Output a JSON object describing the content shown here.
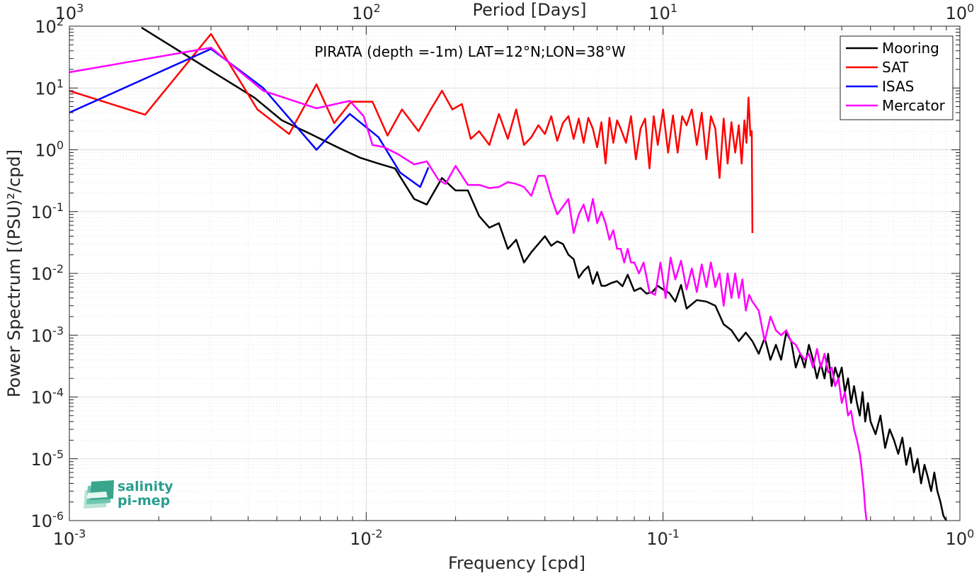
{
  "chart_data": {
    "type": "line",
    "title": "PIRATA (depth =-1m) LAT=12°N;LON=38°W",
    "xlabel": "Frequency [cpd]",
    "ylabel": "Power Spectrum [(PSU)²/cpd]",
    "top_xlabel": "Period [Days]",
    "x_scale": "log",
    "y_scale": "log",
    "xlim": [
      0.001,
      1
    ],
    "ylim": [
      1e-06,
      100
    ],
    "grid": true,
    "legend_position": "top-right",
    "x_ticks": [
      {
        "value": 0.001,
        "base": "10",
        "exp": "-3"
      },
      {
        "value": 0.01,
        "base": "10",
        "exp": "-2"
      },
      {
        "value": 0.1,
        "base": "10",
        "exp": "-1"
      },
      {
        "value": 1,
        "base": "10",
        "exp": "0"
      }
    ],
    "y_ticks": [
      {
        "value": 1e-06,
        "base": "10",
        "exp": "-6"
      },
      {
        "value": 1e-05,
        "base": "10",
        "exp": "-5"
      },
      {
        "value": 0.0001,
        "base": "10",
        "exp": "-4"
      },
      {
        "value": 0.001,
        "base": "10",
        "exp": "-3"
      },
      {
        "value": 0.01,
        "base": "10",
        "exp": "-2"
      },
      {
        "value": 0.1,
        "base": "10",
        "exp": "-1"
      },
      {
        "value": 1,
        "base": "10",
        "exp": "0"
      },
      {
        "value": 10,
        "base": "10",
        "exp": "1"
      },
      {
        "value": 100,
        "base": "10",
        "exp": "2"
      }
    ],
    "top_ticks": [
      {
        "period": 1000,
        "base": "10",
        "exp": "3"
      },
      {
        "period": 100,
        "base": "10",
        "exp": "2"
      },
      {
        "period": 10,
        "base": "10",
        "exp": "1"
      },
      {
        "period": 1,
        "base": "10",
        "exp": "0"
      }
    ],
    "series": [
      {
        "name": "Mooring",
        "color": "#000000",
        "x": [
          0.00175,
          0.003,
          0.0042,
          0.0052,
          0.0065,
          0.008,
          0.0095,
          0.011,
          0.0125,
          0.0145,
          0.016,
          0.018,
          0.02,
          0.022,
          0.024,
          0.026,
          0.028,
          0.03,
          0.032,
          0.034,
          0.036,
          0.038,
          0.04,
          0.042,
          0.044,
          0.046,
          0.048,
          0.05,
          0.052,
          0.054,
          0.056,
          0.058,
          0.06,
          0.062,
          0.064,
          0.067,
          0.07,
          0.073,
          0.076,
          0.08,
          0.084,
          0.088,
          0.092,
          0.096,
          0.1,
          0.105,
          0.11,
          0.115,
          0.12,
          0.13,
          0.14,
          0.15,
          0.16,
          0.17,
          0.18,
          0.19,
          0.2,
          0.21,
          0.22,
          0.23,
          0.24,
          0.25,
          0.26,
          0.27,
          0.28,
          0.29,
          0.3,
          0.31,
          0.32,
          0.33,
          0.34,
          0.35,
          0.36,
          0.37,
          0.38,
          0.39,
          0.4,
          0.41,
          0.42,
          0.43,
          0.44,
          0.45,
          0.46,
          0.47,
          0.48,
          0.49,
          0.5,
          0.52,
          0.54,
          0.56,
          0.58,
          0.6,
          0.62,
          0.64,
          0.66,
          0.68,
          0.7,
          0.72,
          0.74,
          0.76,
          0.78,
          0.8,
          0.82,
          0.84,
          0.86,
          0.88,
          0.9
        ],
        "y": [
          95,
          19,
          7,
          3,
          1.8,
          1.1,
          0.75,
          0.6,
          0.5,
          0.16,
          0.13,
          0.35,
          0.22,
          0.22,
          0.085,
          0.055,
          0.065,
          0.025,
          0.035,
          0.015,
          0.022,
          0.03,
          0.04,
          0.028,
          0.033,
          0.03,
          0.02,
          0.017,
          0.0085,
          0.011,
          0.013,
          0.0068,
          0.0105,
          0.0063,
          0.0063,
          0.007,
          0.0075,
          0.0062,
          0.0095,
          0.0052,
          0.0058,
          0.0047,
          0.005,
          0.0063,
          0.0055,
          0.0048,
          0.0035,
          0.0065,
          0.0027,
          0.0037,
          0.0035,
          0.003,
          0.0015,
          0.0012,
          0.0008,
          0.0011,
          0.0008,
          0.0005,
          0.0009,
          0.0004,
          0.0007,
          0.0004,
          0.0011,
          0.0008,
          0.0003,
          0.0005,
          0.0003,
          0.0007,
          0.0004,
          0.0002,
          0.00035,
          0.0002,
          0.0005,
          0.00015,
          0.0003,
          0.0002,
          0.0003,
          0.00012,
          0.0002,
          8e-05,
          0.00015,
          8e-05,
          5e-05,
          0.00012,
          4e-05,
          8e-05,
          4e-05,
          2.5e-05,
          5e-05,
          1.5e-05,
          3e-05,
          2e-05,
          1.2e-05,
          2.2e-05,
          8e-06,
          1.5e-05,
          6e-06,
          1e-05,
          4e-06,
          8e-06,
          5e-06,
          3e-06,
          6e-06,
          3e-06,
          2e-06,
          1.2e-06,
          1e-06
        ]
      },
      {
        "name": "SAT",
        "color": "#ff0000",
        "x": [
          0.001,
          0.0018,
          0.003,
          0.0043,
          0.0055,
          0.0068,
          0.0078,
          0.0089,
          0.0095,
          0.0105,
          0.0118,
          0.0132,
          0.015,
          0.0165,
          0.018,
          0.0195,
          0.021,
          0.0225,
          0.024,
          0.026,
          0.028,
          0.03,
          0.032,
          0.034,
          0.036,
          0.038,
          0.04,
          0.042,
          0.044,
          0.046,
          0.048,
          0.05,
          0.052,
          0.054,
          0.056,
          0.058,
          0.06,
          0.062,
          0.064,
          0.066,
          0.068,
          0.07,
          0.072,
          0.075,
          0.078,
          0.081,
          0.084,
          0.087,
          0.09,
          0.093,
          0.096,
          0.1,
          0.104,
          0.108,
          0.112,
          0.116,
          0.12,
          0.125,
          0.13,
          0.135,
          0.14,
          0.145,
          0.15,
          0.155,
          0.16,
          0.165,
          0.17,
          0.175,
          0.18,
          0.184,
          0.188,
          0.191,
          0.194,
          0.197,
          0.199,
          0.2
        ],
        "y": [
          9,
          3.7,
          75,
          4.5,
          1.8,
          11.5,
          2.7,
          6,
          6,
          6,
          1.7,
          4.5,
          2,
          4.5,
          9,
          4.5,
          5.5,
          1.5,
          2,
          1.2,
          3.8,
          1.5,
          4.5,
          1.2,
          1.6,
          2.5,
          1.8,
          3.5,
          1.4,
          2.7,
          3.5,
          1.5,
          3.2,
          1.3,
          3.3,
          2.2,
          1.1,
          2.8,
          0.6,
          3.3,
          1.3,
          3,
          2.2,
          1.3,
          3.5,
          0.7,
          2.2,
          3.2,
          0.5,
          3.5,
          1.2,
          4.5,
          0.9,
          3.6,
          0.9,
          3.5,
          2.5,
          4.5,
          1.2,
          4,
          0.7,
          3.5,
          2.2,
          0.35,
          3.2,
          0.6,
          2.8,
          0.9,
          2.5,
          0.6,
          3,
          1.3,
          7,
          1.7,
          2,
          0.045
        ]
      },
      {
        "name": "ISAS",
        "color": "#0000ff",
        "x": [
          0.001,
          0.003,
          0.0045,
          0.0068,
          0.0088,
          0.011,
          0.013,
          0.0152,
          0.0162
        ],
        "y": [
          4,
          43,
          10,
          1,
          3.8,
          1.6,
          0.43,
          0.25,
          0.52
        ]
      },
      {
        "name": "Mercator",
        "color": "#ff00ff",
        "x": [
          0.001,
          0.003,
          0.0045,
          0.0068,
          0.0088,
          0.0098,
          0.0105,
          0.0115,
          0.0128,
          0.0145,
          0.016,
          0.0175,
          0.0185,
          0.02,
          0.022,
          0.024,
          0.026,
          0.028,
          0.03,
          0.032,
          0.034,
          0.036,
          0.038,
          0.04,
          0.042,
          0.044,
          0.046,
          0.048,
          0.05,
          0.052,
          0.054,
          0.056,
          0.058,
          0.06,
          0.062,
          0.064,
          0.066,
          0.068,
          0.07,
          0.072,
          0.074,
          0.076,
          0.078,
          0.08,
          0.083,
          0.086,
          0.09,
          0.094,
          0.098,
          0.102,
          0.106,
          0.11,
          0.115,
          0.12,
          0.125,
          0.13,
          0.135,
          0.14,
          0.145,
          0.15,
          0.155,
          0.16,
          0.165,
          0.17,
          0.175,
          0.18,
          0.185,
          0.19,
          0.195,
          0.2,
          0.21,
          0.22,
          0.23,
          0.24,
          0.25,
          0.26,
          0.27,
          0.28,
          0.29,
          0.3,
          0.31,
          0.32,
          0.33,
          0.34,
          0.35,
          0.36,
          0.37,
          0.38,
          0.39,
          0.4,
          0.41,
          0.42,
          0.43,
          0.44,
          0.45,
          0.46,
          0.465,
          0.47,
          0.475,
          0.48,
          0.485
        ],
        "y": [
          18,
          45,
          9,
          4.7,
          6.2,
          3.5,
          1.2,
          1.1,
          0.85,
          0.58,
          0.65,
          0.33,
          0.28,
          0.55,
          0.27,
          0.27,
          0.24,
          0.25,
          0.3,
          0.28,
          0.25,
          0.18,
          0.38,
          0.38,
          0.17,
          0.09,
          0.12,
          0.16,
          0.045,
          0.09,
          0.13,
          0.07,
          0.16,
          0.065,
          0.1,
          0.065,
          0.035,
          0.05,
          0.025,
          0.025,
          0.015,
          0.025,
          0.015,
          0.015,
          0.01,
          0.015,
          0.005,
          0.0045,
          0.015,
          0.004,
          0.018,
          0.008,
          0.016,
          0.0055,
          0.012,
          0.005,
          0.014,
          0.006,
          0.015,
          0.006,
          0.01,
          0.003,
          0.01,
          0.004,
          0.01,
          0.004,
          0.008,
          0.0025,
          0.0045,
          0.0035,
          0.0025,
          0.0008,
          0.002,
          0.0012,
          0.001,
          0.0012,
          0.0008,
          0.0007,
          0.0005,
          0.0004,
          0.0005,
          0.0003,
          0.0006,
          0.0003,
          0.0005,
          0.00025,
          0.0003,
          0.00015,
          0.0002,
          8e-05,
          0.00012,
          5e-05,
          6e-05,
          3e-05,
          2e-05,
          1.2e-05,
          8e-06,
          5e-06,
          3e-06,
          1.5e-06,
          1e-06
        ]
      }
    ]
  },
  "logo": {
    "line1": "salinity",
    "line2": "pi-mep"
  }
}
